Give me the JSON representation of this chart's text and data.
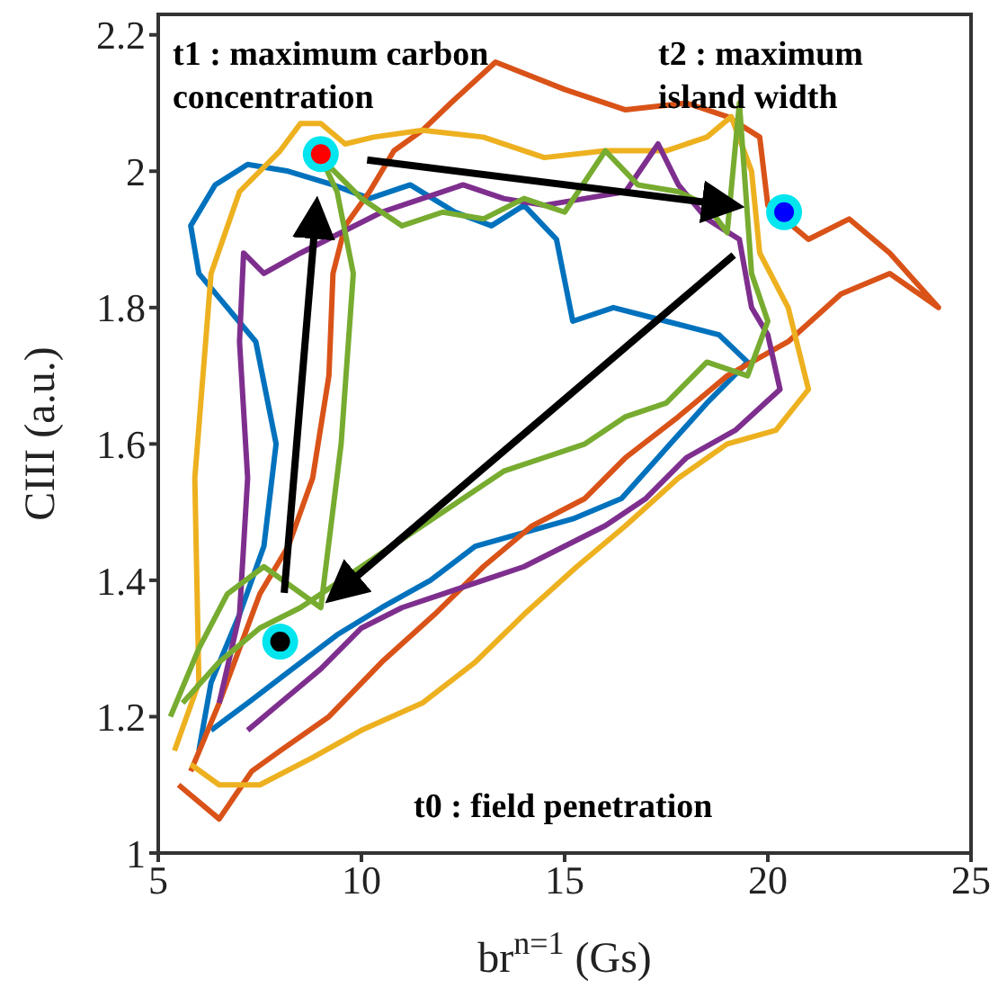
{
  "chart_data": {
    "type": "line",
    "xlabel": "br$^{n=1}$ (Gs)",
    "ylabel": "CIII (a.u.)",
    "xlim": [
      5,
      25
    ],
    "xticks": [
      5,
      10,
      15,
      20,
      25
    ],
    "ylim": [
      1,
      2.23
    ],
    "yticks": [
      1,
      1.2,
      1.4,
      1.6,
      1.8,
      2,
      2.2
    ],
    "marker": "none",
    "line_style": "solid",
    "annotations": [
      "t1 : maximum carbon concentration",
      "t2 : maximum island width",
      "t0 : field penetration"
    ],
    "series": [
      {
        "color": "#0072bd",
        "x": [
          6.0,
          6.3,
          7.0,
          7.6,
          7.9,
          7.4,
          6.0,
          5.8,
          6.4,
          7.2,
          8.2,
          9.3,
          10.2,
          11.2,
          12.3,
          13.2,
          14.0,
          14.8,
          15.2,
          16.2,
          17.5,
          18.8,
          19.5,
          18.5,
          17.6,
          16.4,
          15.2,
          14.0,
          12.8,
          11.7,
          10.5,
          9.4,
          8.3,
          7.2,
          6.3
        ],
        "values": [
          1.15,
          1.25,
          1.35,
          1.45,
          1.6,
          1.75,
          1.85,
          1.92,
          1.98,
          2.01,
          2.0,
          1.98,
          1.96,
          1.98,
          1.94,
          1.92,
          1.95,
          1.9,
          1.78,
          1.8,
          1.78,
          1.76,
          1.72,
          1.66,
          1.6,
          1.52,
          1.49,
          1.47,
          1.45,
          1.4,
          1.36,
          1.32,
          1.27,
          1.22,
          1.18
        ]
      },
      {
        "color": "#d95319",
        "x": [
          5.5,
          6.5,
          7.3,
          8.0,
          9.2,
          10.5,
          11.8,
          13.0,
          14.2,
          15.5,
          16.5,
          17.8,
          19.0,
          20.5,
          21.8,
          23.0,
          24.2,
          23.0,
          22.0,
          21.0,
          20.0,
          19.8,
          19.0,
          18.0,
          16.5,
          15.0,
          13.3,
          12.2,
          11.5,
          10.8,
          10.2,
          9.6,
          9.3,
          9.2,
          8.8,
          8.2,
          7.5,
          6.5,
          5.8
        ],
        "values": [
          1.1,
          1.05,
          1.12,
          1.15,
          1.2,
          1.28,
          1.35,
          1.42,
          1.48,
          1.52,
          1.58,
          1.64,
          1.7,
          1.75,
          1.82,
          1.85,
          1.8,
          1.88,
          1.93,
          1.9,
          1.95,
          2.05,
          2.08,
          2.1,
          2.09,
          2.12,
          2.16,
          2.1,
          2.06,
          2.03,
          1.97,
          1.92,
          1.85,
          1.7,
          1.55,
          1.45,
          1.38,
          1.22,
          1.12
        ]
      },
      {
        "color": "#edb120",
        "x": [
          5.4,
          6.0,
          5.9,
          6.3,
          7.0,
          8.0,
          8.5,
          9.0,
          9.6,
          10.3,
          11.5,
          13.0,
          14.5,
          16.0,
          17.5,
          18.5,
          19.1,
          19.6,
          19.8,
          20.5,
          21.0,
          20.2,
          19.0,
          17.8,
          16.5,
          15.3,
          14.0,
          12.8,
          11.5,
          10.0,
          8.8,
          7.5,
          6.5,
          5.8
        ],
        "values": [
          1.15,
          1.25,
          1.55,
          1.85,
          1.97,
          2.03,
          2.07,
          2.07,
          2.04,
          2.05,
          2.06,
          2.05,
          2.02,
          2.03,
          2.03,
          2.05,
          2.08,
          2.0,
          1.88,
          1.8,
          1.68,
          1.62,
          1.6,
          1.55,
          1.48,
          1.42,
          1.35,
          1.28,
          1.22,
          1.18,
          1.14,
          1.1,
          1.1,
          1.13
        ]
      },
      {
        "color": "#7e2f8e",
        "x": [
          6.5,
          7.0,
          7.2,
          7.0,
          7.1,
          7.6,
          8.5,
          9.5,
          10.5,
          11.5,
          12.5,
          13.5,
          14.5,
          15.5,
          16.5,
          17.3,
          17.8,
          18.5,
          19.3,
          19.6,
          20.0,
          20.3,
          19.2,
          18.0,
          17.0,
          16.0,
          15.0,
          14.0,
          13.0,
          12.0,
          11.0,
          10.0,
          9.0,
          8.0,
          7.2
        ],
        "values": [
          1.22,
          1.35,
          1.55,
          1.75,
          1.88,
          1.85,
          1.88,
          1.91,
          1.94,
          1.96,
          1.98,
          1.96,
          1.95,
          1.96,
          1.97,
          2.04,
          1.98,
          1.93,
          1.9,
          1.8,
          1.76,
          1.68,
          1.62,
          1.58,
          1.52,
          1.48,
          1.45,
          1.42,
          1.4,
          1.38,
          1.36,
          1.33,
          1.27,
          1.22,
          1.18
        ]
      },
      {
        "color": "#77ac30",
        "x": [
          5.3,
          6.0,
          6.7,
          7.6,
          9.0,
          9.5,
          9.8,
          9.4,
          9.0,
          10.0,
          11.0,
          12.0,
          13.0,
          14.0,
          15.0,
          16.0,
          16.8,
          17.8,
          18.5,
          19.0,
          19.3,
          19.6,
          20.0,
          19.5,
          18.5,
          17.5,
          16.5,
          15.5,
          14.5,
          13.5,
          12.5,
          11.5,
          10.5,
          9.5,
          8.5,
          7.5,
          6.5,
          5.6
        ],
        "values": [
          1.2,
          1.3,
          1.38,
          1.42,
          1.36,
          1.6,
          1.85,
          1.97,
          2.02,
          1.96,
          1.92,
          1.94,
          1.93,
          1.96,
          1.94,
          2.03,
          1.98,
          1.97,
          1.95,
          1.91,
          2.1,
          1.85,
          1.78,
          1.7,
          1.72,
          1.66,
          1.64,
          1.6,
          1.58,
          1.56,
          1.52,
          1.48,
          1.44,
          1.4,
          1.36,
          1.33,
          1.28,
          1.22
        ]
      },
      {
        "type": "scatter",
        "marker": "circle",
        "x": [
          8,
          9,
          20.4
        ],
        "values": [
          1.31,
          2.025,
          1.94
        ],
        "colors": [
          "#000000",
          "#ff0000",
          "#0000ff"
        ]
      }
    ]
  }
}
